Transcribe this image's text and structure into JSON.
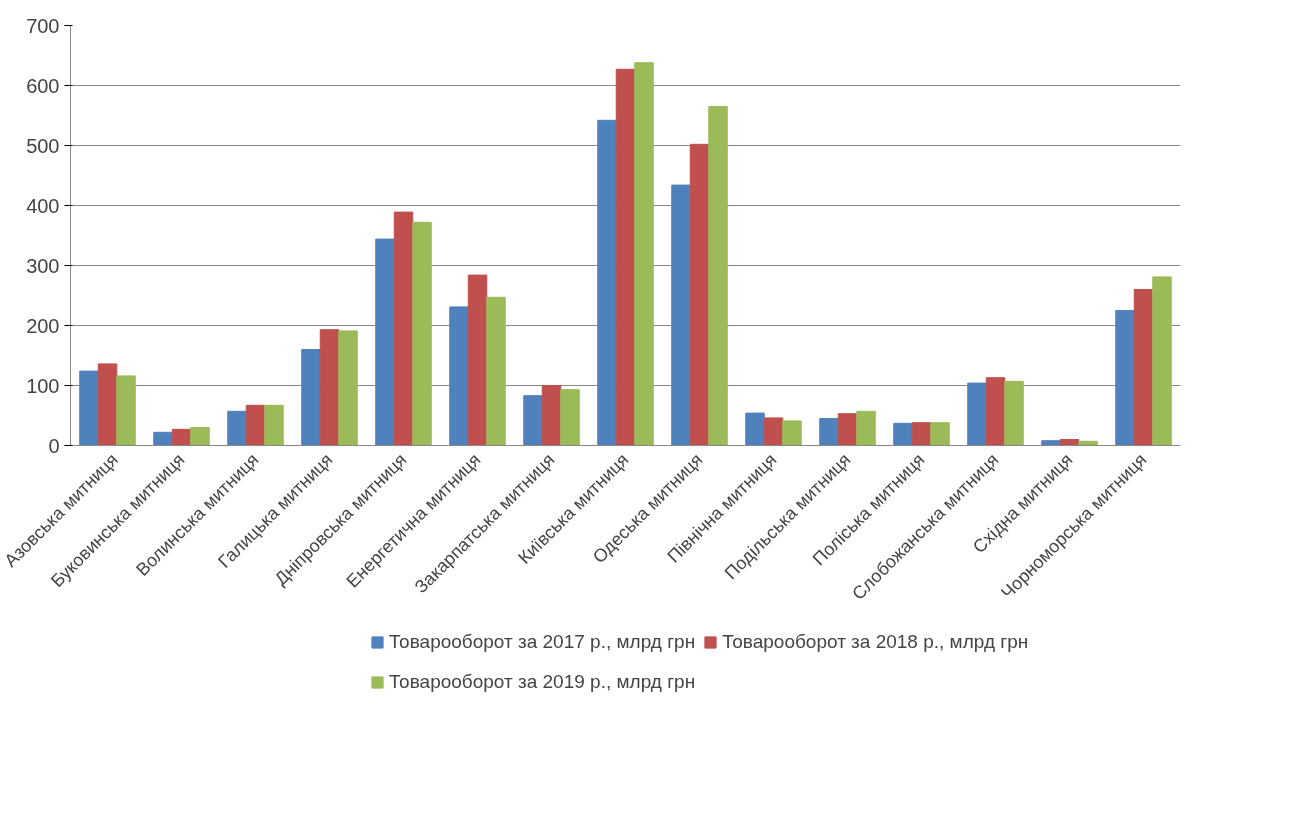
{
  "chart_data": {
    "type": "bar",
    "categories": [
      "Азовська митниця",
      "Буковинська митниця",
      "Волинська митниця",
      "Галицька митниця",
      "Дніпровська митниця",
      "Енергетична митниця",
      "Закарпатська митниця",
      "Київська митниця",
      "Одеська митниця",
      "Північна митниця",
      "Подільська митниця",
      "Поліська митниця",
      "Слобожанська митниця",
      "Східна митниця",
      "Чорноморська митниця"
    ],
    "series": [
      {
        "name": "Товарооборот за 2017 р., млрд грн",
        "color": "#4f81bd",
        "values": [
          124,
          22,
          57,
          160,
          344,
          231,
          83,
          542,
          434,
          54,
          45,
          37,
          104,
          8,
          225
        ]
      },
      {
        "name": "Товарооборот за 2018 р., млрд грн",
        "color": "#c0504d",
        "values": [
          136,
          27,
          67,
          193,
          389,
          284,
          100,
          627,
          502,
          46,
          53,
          38,
          113,
          10,
          260
        ]
      },
      {
        "name": "Товарооборот за 2019 р., млрд грн",
        "color": "#9bbb59",
        "values": [
          116,
          30,
          67,
          191,
          372,
          247,
          93,
          638,
          565,
          41,
          57,
          38,
          107,
          7,
          281
        ]
      }
    ],
    "ylim": [
      0,
      700
    ],
    "yticks": [
      0,
      100,
      200,
      300,
      400,
      500,
      600,
      700
    ],
    "grid": "y",
    "legend": "bottom"
  }
}
